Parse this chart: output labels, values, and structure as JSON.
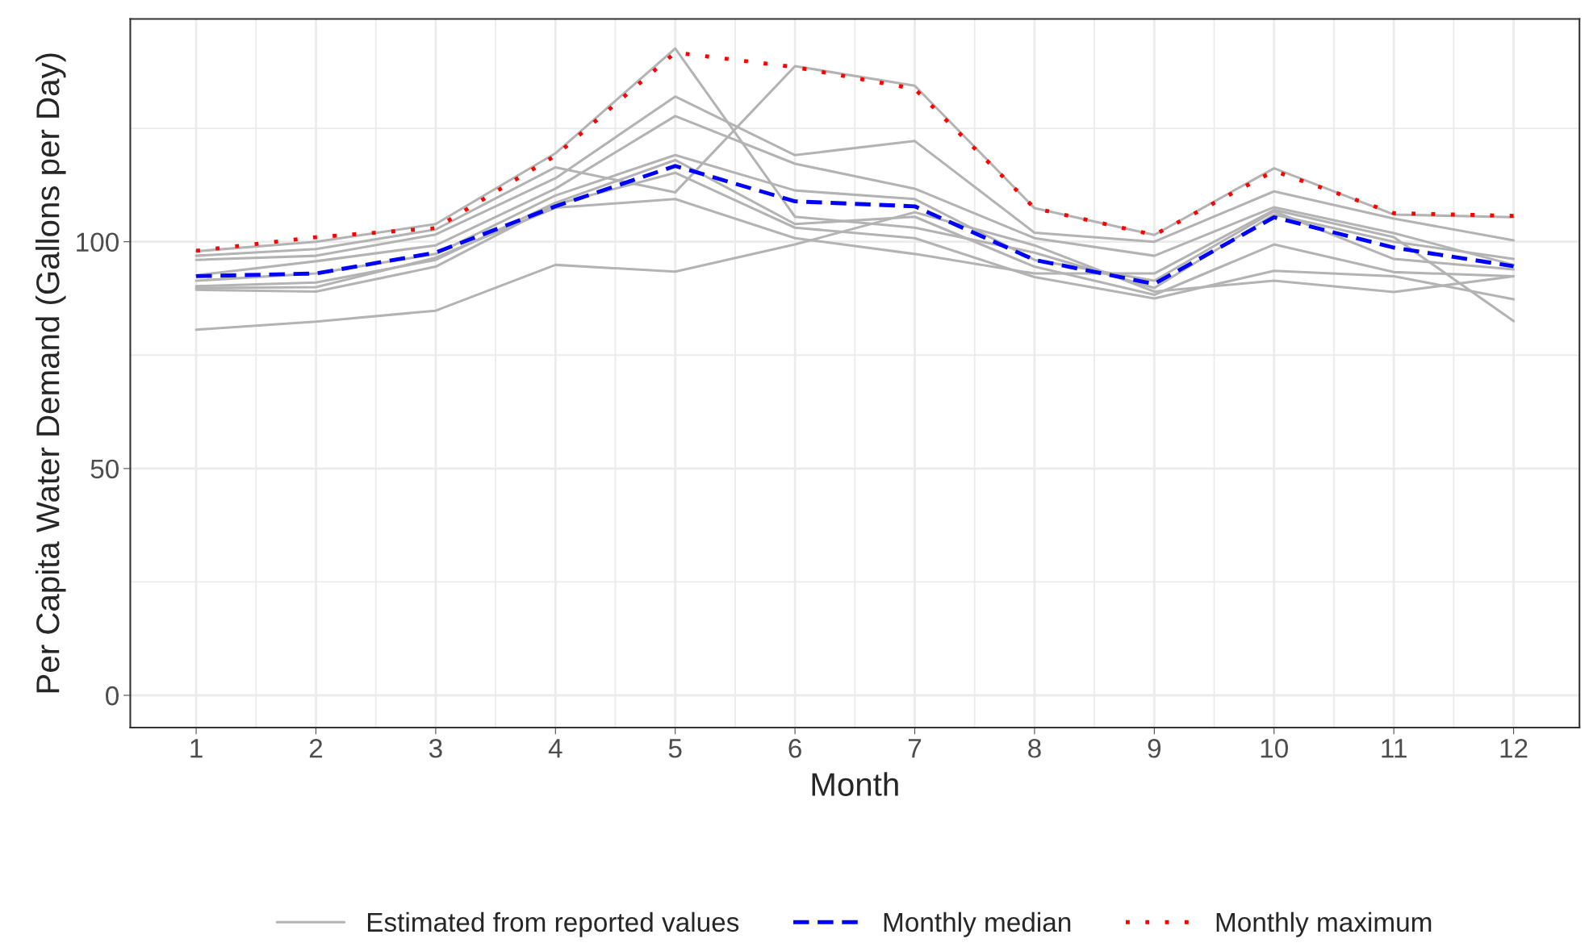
{
  "chart_data": {
    "type": "line",
    "xlabel": "Month",
    "ylabel": "Per Capita Water Demand (Gallons per Day)",
    "x": [
      1,
      2,
      3,
      4,
      5,
      6,
      7,
      8,
      9,
      10,
      11,
      12
    ],
    "xlim": [
      0.45,
      12.55
    ],
    "ylim": [
      -7.1,
      149.1
    ],
    "xticks": [
      1,
      2,
      3,
      4,
      5,
      6,
      7,
      8,
      9,
      10,
      11,
      12
    ],
    "yticks": [
      0,
      50,
      100
    ],
    "grid": true,
    "legend": "bottom",
    "series": [
      {
        "name": "Estimated from reported values",
        "color": "#b3b3b3",
        "line_style": "solid",
        "values": [
          97.9,
          100,
          103.9,
          119.5,
          142.6,
          105.5,
          103.1,
          97.6,
          89.8,
          106,
          100,
          96.2
        ]
      },
      {
        "color": "#b3b3b3",
        "line_style": "solid",
        "values": [
          96.9,
          98.4,
          102.7,
          116.4,
          110.9,
          138.7,
          134.4,
          107.4,
          101.5,
          116.2,
          106,
          105.4
        ]
      },
      {
        "color": "#b3b3b3",
        "line_style": "solid",
        "values": [
          96,
          96.9,
          101.6,
          114,
          132,
          119.1,
          122.2,
          102,
          100,
          111.1,
          105.1,
          100.3
        ]
      },
      {
        "color": "#b3b3b3",
        "line_style": "solid",
        "values": [
          92.6,
          95.7,
          99.2,
          111.7,
          127.7,
          117.2,
          111.7,
          100.8,
          96.9,
          107.6,
          101.9,
          94.9
        ]
      },
      {
        "color": "#b3b3b3",
        "line_style": "solid",
        "values": [
          91.4,
          93,
          97.3,
          110.2,
          119.1,
          111.3,
          109.4,
          96,
          91.4,
          106.7,
          96.2,
          93.9
        ]
      },
      {
        "color": "#b3b3b3",
        "line_style": "solid",
        "values": [
          90.2,
          91,
          96,
          108.6,
          118,
          103.9,
          105.5,
          94.5,
          88.3,
          99.4,
          93.3,
          92.4
        ]
      },
      {
        "color": "#b3b3b3",
        "line_style": "solid",
        "values": [
          89.4,
          89,
          94.5,
          108.2,
          115.2,
          103.1,
          100.8,
          92.2,
          87.5,
          93.6,
          92.4,
          87.3
        ]
      },
      {
        "color": "#b3b3b3",
        "line_style": "solid",
        "values": [
          89.8,
          90,
          96.5,
          107.5,
          109.4,
          100.8,
          97.3,
          93,
          93,
          107,
          101,
          82.5
        ]
      },
      {
        "color": "#b3b3b3",
        "line_style": "solid",
        "values": [
          80.6,
          82.4,
          84.8,
          94.9,
          93.4,
          99.4,
          106.5,
          99.2,
          89,
          91.4,
          88.9,
          92.4
        ]
      },
      {
        "name": "Monthly median",
        "color": "#0000ff",
        "line_style": "dashed",
        "values": [
          92.4,
          93,
          97.6,
          107.8,
          116.7,
          108.9,
          107.8,
          96,
          90.7,
          105.4,
          98.7,
          94.6
        ]
      },
      {
        "name": "Monthly maximum",
        "color": "#ff0000",
        "line_style": "dotted",
        "values": [
          98,
          101,
          103,
          119,
          141.7,
          138.5,
          133.7,
          107.4,
          101.5,
          115.6,
          106.3,
          105.7
        ]
      }
    ]
  }
}
